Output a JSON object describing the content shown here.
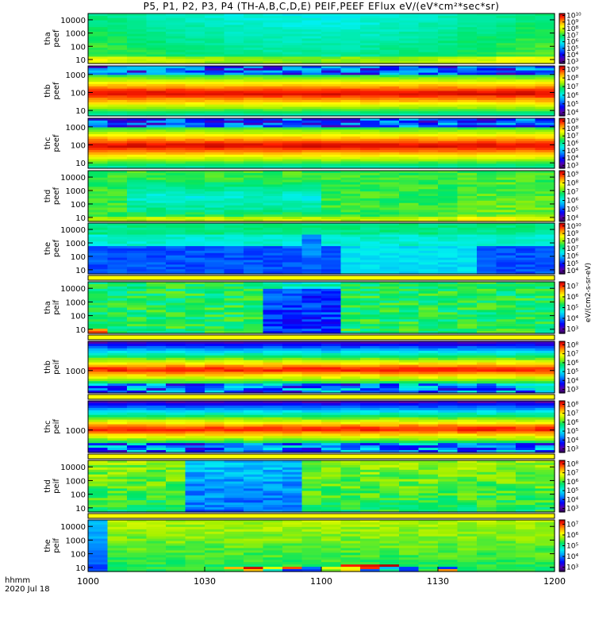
{
  "title": "P5, P1, P2, P3, P4 (TH-A,B,C,D,E) PEIF,PEEF EFlux eV/(eV*cm²*sec*sr)",
  "colors": {
    "frame": "#000000",
    "separator": "#ffff00"
  },
  "chart_data": {
    "type": "heatmap",
    "xlabel": "hhmm",
    "date_label": "2020 Jul 18",
    "x_ticks": [
      "1000",
      "1030",
      "1100",
      "1130",
      "1200"
    ],
    "x_range_minutes": [
      600,
      720
    ],
    "y_scale": "log",
    "colorbar_unit": "eV/(cm2-s-sr-eV)",
    "colormap": "rainbow",
    "panels": [
      {
        "probe": "tha",
        "product": "peef",
        "label": "tha peef",
        "y_ticks": [
          "10",
          "100",
          "1000",
          "10000"
        ],
        "y_range": [
          5,
          30000
        ],
        "cbar_ticks": [
          "10³",
          "10⁴",
          "10⁵",
          "10⁶",
          "10⁷",
          "10⁸",
          "10⁹",
          "10¹⁰"
        ],
        "cbar_range_log10": [
          2.7,
          10.3
        ],
        "pattern": "tha-e"
      },
      {
        "probe": "thb",
        "product": "peef",
        "label": "thb peef",
        "y_ticks": [
          "10",
          "100",
          "1000"
        ],
        "y_range": [
          5,
          3000
        ],
        "cbar_ticks": [
          "10⁴",
          "10⁵",
          "10⁶",
          "10⁷",
          "10⁸",
          "10⁹"
        ],
        "cbar_range_log10": [
          3.6,
          9.4
        ],
        "pattern": "band-e"
      },
      {
        "probe": "thc",
        "product": "peef",
        "label": "thc peef",
        "y_ticks": [
          "10",
          "100",
          "1000"
        ],
        "y_range": [
          5,
          3000
        ],
        "cbar_ticks": [
          "10³",
          "10⁴",
          "10⁵",
          "10⁶",
          "10⁷",
          "10⁸",
          "10⁹"
        ],
        "cbar_range_log10": [
          2.6,
          9.4
        ],
        "pattern": "band-e"
      },
      {
        "probe": "thd",
        "product": "peef",
        "label": "thd peef",
        "y_ticks": [
          "10",
          "100",
          "1000",
          "10000"
        ],
        "y_range": [
          5,
          30000
        ],
        "cbar_ticks": [
          "10⁴",
          "10⁵",
          "10⁶",
          "10⁷",
          "10⁸",
          "10⁹"
        ],
        "cbar_range_log10": [
          3.6,
          9.4
        ],
        "pattern": "thd-e"
      },
      {
        "probe": "the",
        "product": "peef",
        "label": "the peef",
        "y_ticks": [
          "10",
          "100",
          "1000",
          "10000"
        ],
        "y_range": [
          5,
          30000
        ],
        "cbar_ticks": [
          "10⁴",
          "10⁵",
          "10⁶",
          "10⁷",
          "10⁸",
          "10⁹",
          "10¹⁰"
        ],
        "cbar_range_log10": [
          3.6,
          10.4
        ],
        "pattern": "the-e"
      },
      {
        "probe": "tha",
        "product": "peif",
        "label": "tha peif",
        "y_ticks": [
          "10",
          "100",
          "1000",
          "10000"
        ],
        "y_range": [
          5,
          30000
        ],
        "cbar_ticks": [
          "10³",
          "10⁴",
          "10⁵",
          "10⁶",
          "10⁷"
        ],
        "cbar_range_log10": [
          2.6,
          7.4
        ],
        "pattern": "tha-i"
      },
      {
        "probe": "thb",
        "product": "peif",
        "label": "thb peif",
        "y_ticks": [
          "1000"
        ],
        "y_range": [
          100,
          20000
        ],
        "cbar_ticks": [
          "10³",
          "10⁴",
          "10⁵",
          "10⁶",
          "10⁷",
          "10⁸"
        ],
        "cbar_range_log10": [
          2.6,
          8.4
        ],
        "pattern": "band-i"
      },
      {
        "probe": "thc",
        "product": "peif",
        "label": "thc peif",
        "y_ticks": [
          "1000"
        ],
        "y_range": [
          100,
          20000
        ],
        "cbar_ticks": [
          "10³",
          "10⁴",
          "10⁵",
          "10⁶",
          "10⁷",
          "10⁸"
        ],
        "cbar_range_log10": [
          2.6,
          8.4
        ],
        "pattern": "band-i"
      },
      {
        "probe": "thd",
        "product": "peif",
        "label": "thd peif",
        "y_ticks": [
          "10",
          "100",
          "1000",
          "10000"
        ],
        "y_range": [
          5,
          30000
        ],
        "cbar_ticks": [
          "10³",
          "10⁴",
          "10⁵",
          "10⁶",
          "10⁷",
          "10⁸"
        ],
        "cbar_range_log10": [
          2.6,
          8.4
        ],
        "pattern": "thd-i"
      },
      {
        "probe": "the",
        "product": "peif",
        "label": "the peif",
        "y_ticks": [
          "10",
          "100",
          "1000",
          "10000"
        ],
        "y_range": [
          5,
          30000
        ],
        "cbar_ticks": [
          "10³",
          "10⁴",
          "10⁵",
          "10⁶",
          "10⁷"
        ],
        "cbar_range_log10": [
          2.6,
          7.4
        ],
        "pattern": "the-i"
      }
    ]
  }
}
